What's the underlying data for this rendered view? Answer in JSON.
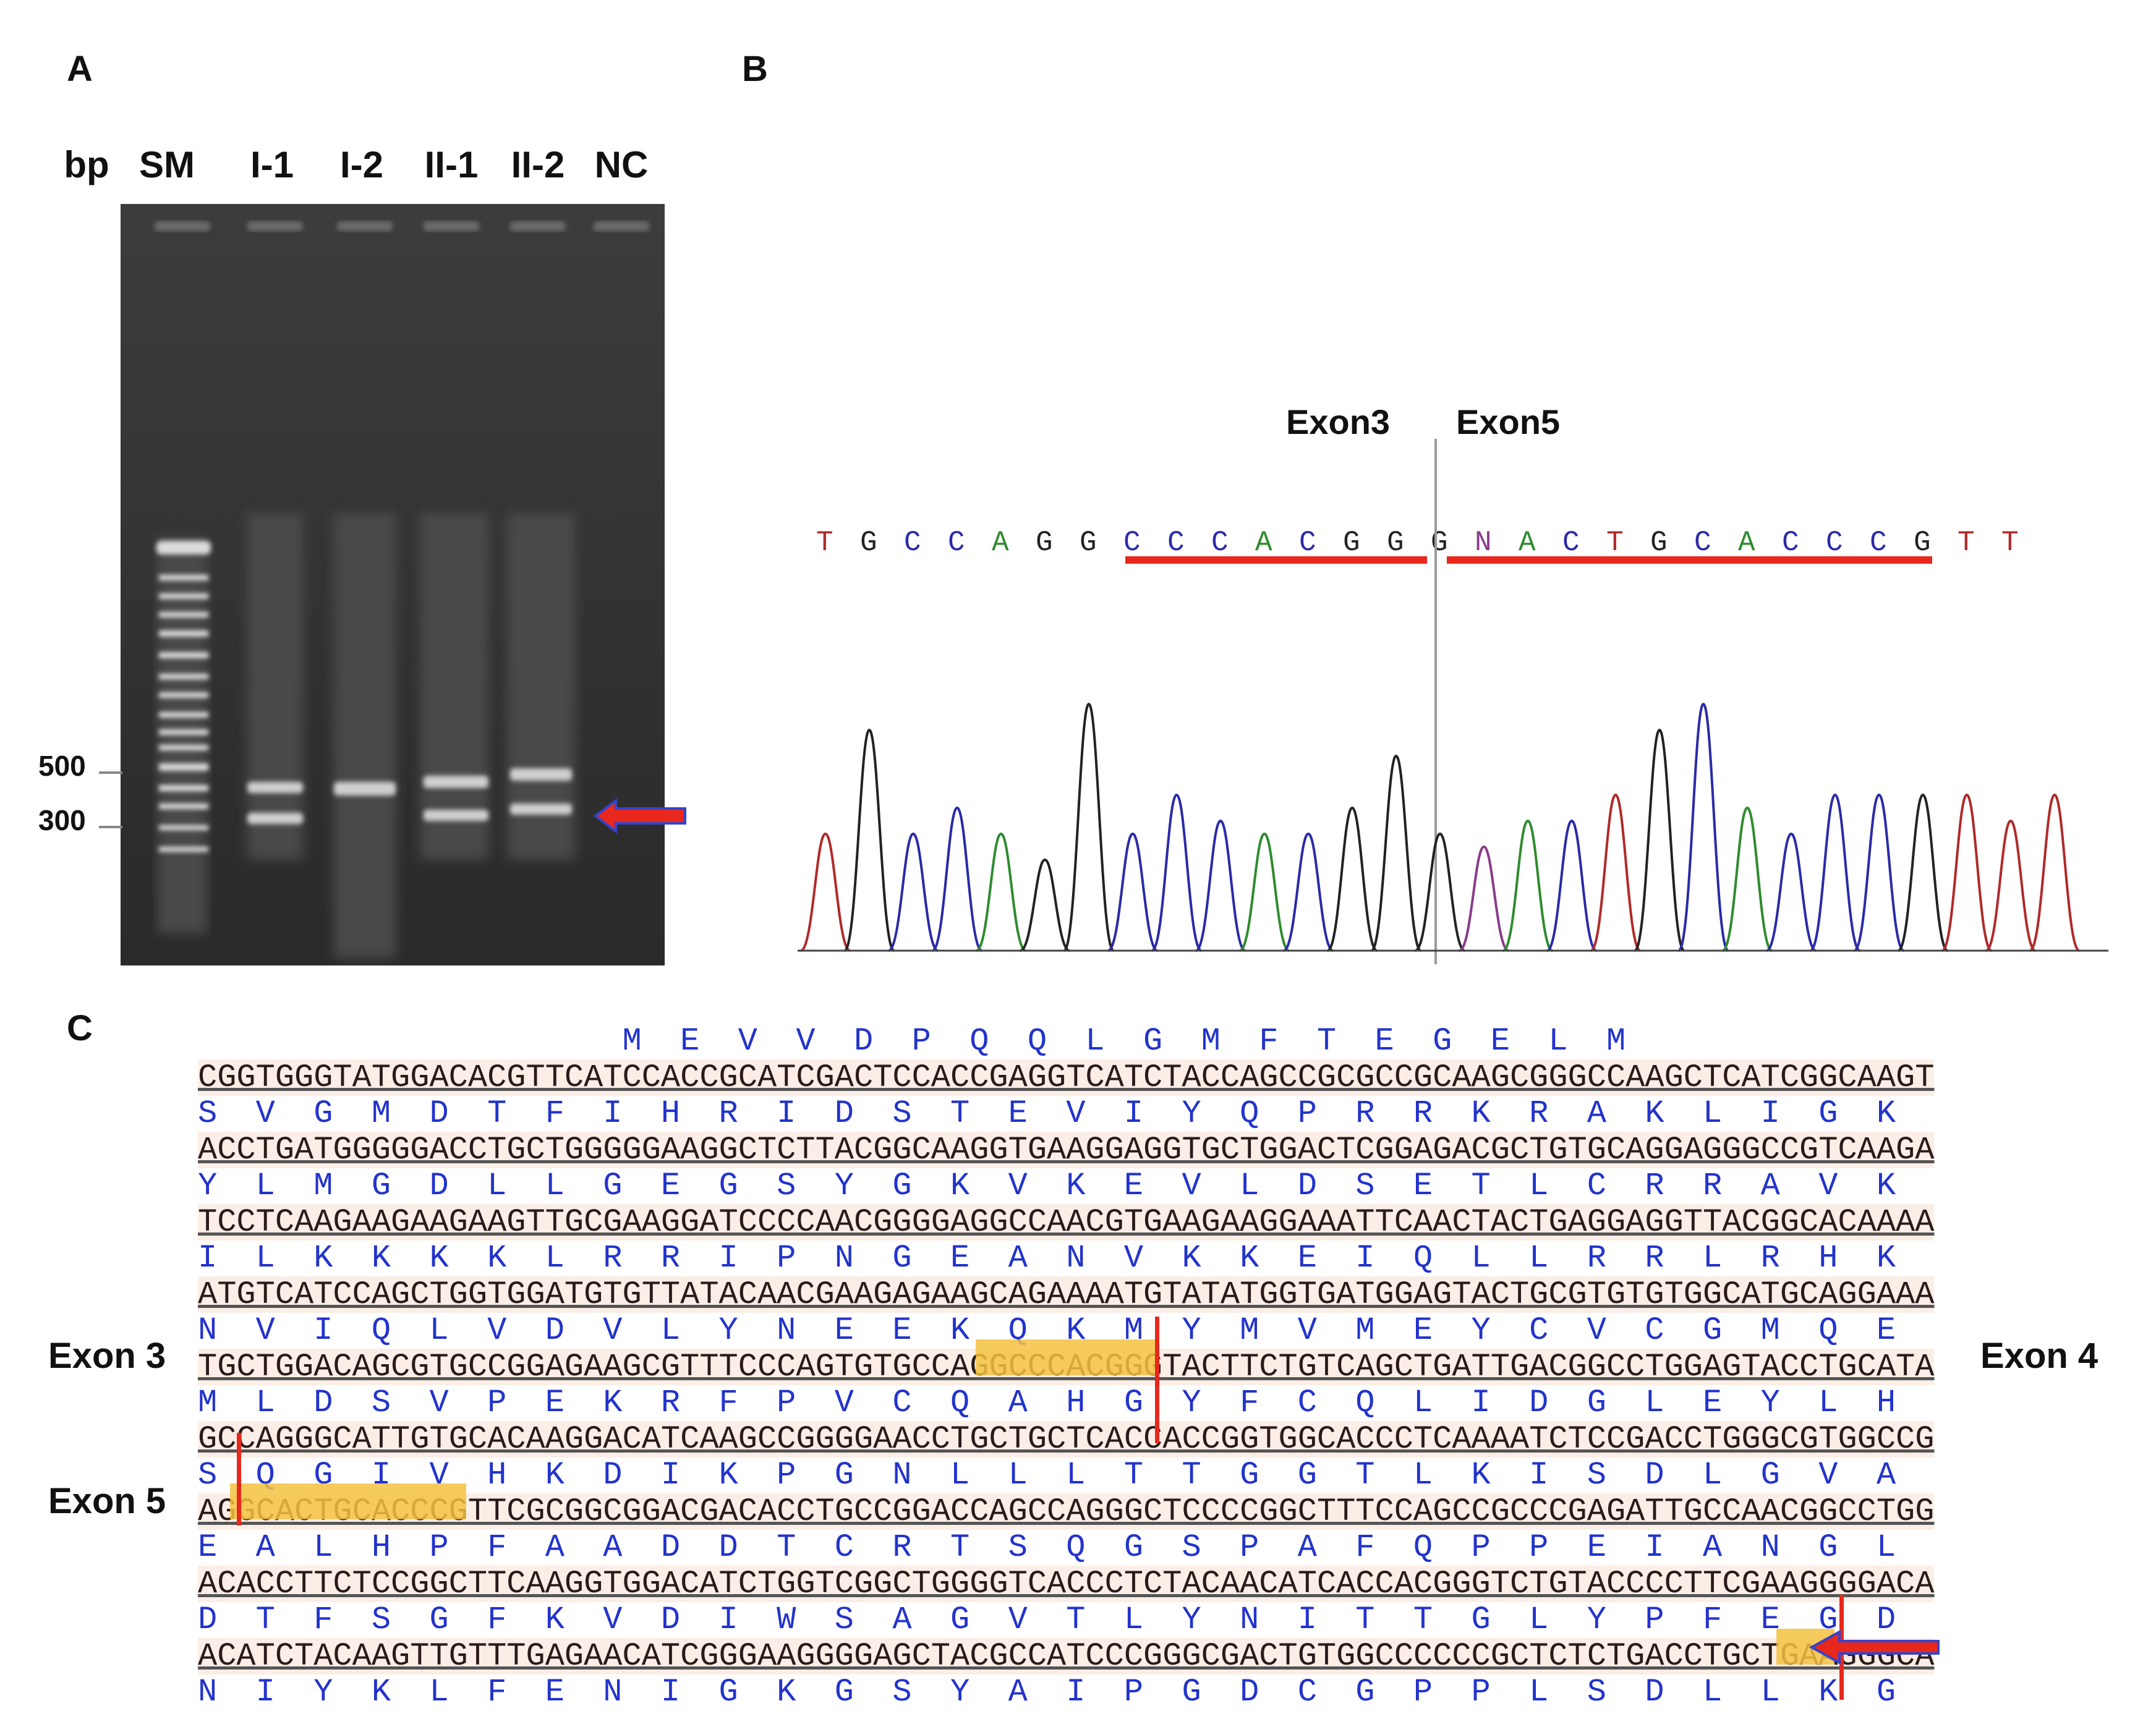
{
  "panels": {
    "a": "A",
    "b": "B",
    "c": "C"
  },
  "gel": {
    "bp_label": "bp",
    "lanes": [
      "SM",
      "I-1",
      "I-2",
      "II-1",
      "II-2",
      "NC"
    ],
    "markers": [
      "500",
      "300"
    ],
    "arrow_color": "#e8281c"
  },
  "chromatogram": {
    "exon_left": "Exon3",
    "exon_right": "Exon5",
    "bases": [
      "T",
      "G",
      "C",
      "C",
      "A",
      "G",
      "G",
      "C",
      "C",
      "C",
      "A",
      "C",
      "G",
      "G",
      "G",
      "N",
      "A",
      "C",
      "T",
      "G",
      "C",
      "A",
      "C",
      "C",
      "C",
      "G",
      "T",
      "T"
    ],
    "base_colors": {
      "A": "#2e8b2e",
      "C": "#2a2aa8",
      "G": "#222222",
      "T": "#b02a2a",
      "N": "#8a3a8a"
    }
  },
  "sequence": {
    "exon_3": "Exon 3",
    "exon_4": "Exon 4",
    "exon_5": "Exon 5",
    "lines": [
      {
        "t": "aa",
        "s": "                      M  E  V  V  D  P  Q  Q  L  G  M  F  T  E  G  E  L  M"
      },
      {
        "t": "dna",
        "s": "CGGTGGGTATGGACACGTTCATCCACCGCATCGACTCCACCGAGGTCATCTACCAGCCGCGCCGCAAGCGGGCCAAGCTCATCGGCAAGT"
      },
      {
        "t": "aa",
        "s": "S  V  G  M  D  T  F  I  H  R  I  D  S  T  E  V  I  Y  Q  P  R  R  K  R  A  K  L  I  G  K"
      },
      {
        "t": "dna",
        "s": "ACCTGATGGGGGACCTGCTGGGGGAAGGCTCTTACGGCAAGGTGAAGGAGGTGCTGGACTCGGAGACGCTGTGCAGGAGGGCCGTCAAGA"
      },
      {
        "t": "aa",
        "s": "Y  L  M  G  D  L  L  G  E  G  S  Y  G  K  V  K  E  V  L  D  S  E  T  L  C  R  R  A  V  K"
      },
      {
        "t": "dna",
        "s": "TCCTCAAGAAGAAGAAGTTGCGAAGGATCCCCAACGGGGAGGCCAACGTGAAGAAGGAAATTCAACTACTGAGGAGGTTACGGCACAAAA"
      },
      {
        "t": "aa",
        "s": "I  L  K  K  K  K  L  R  R  I  P  N  G  E  A  N  V  K  K  E  I  Q  L  L  R  R  L  R  H  K"
      },
      {
        "t": "dna",
        "s": "ATGTCATCCAGCTGGTGGATGTGTTATACAACGAAGAGAAGCAGAAAATGTATATGGTGATGGAGTACTGCGTGTGTGGCATGCAGGAAA"
      },
      {
        "t": "aa",
        "s": "N  V  I  Q  L  V  D  V  L  Y  N  E  E  K  Q  K  M  Y  M  V  M  E  Y  C  V  C  G  M  Q  E"
      },
      {
        "t": "dna",
        "s": "TGCTGGACAGCGTGCCGGAGAAGCGTTTCCCAGTGTGCCAGGCCCACGGGTACTTCTGTCAGCTGATTGACGGCCTGGAGTACCTGCATA"
      },
      {
        "t": "aa",
        "s": "M  L  D  S  V  P  E  K  R  F  P  V  C  Q  A  H  G  Y  F  C  Q  L  I  D  G  L  E  Y  L  H"
      },
      {
        "t": "dna",
        "s": "GCCAGGGCATTGTGCACAAGGACATCAAGCCGGGGAACCTGCTGCTCACCACCGGTGGCACCCTCAAAATCTCCGACCTGGGCGTGGCCG"
      },
      {
        "t": "aa",
        "s": "S  Q  G  I  V  H  K  D  I  K  P  G  N  L  L  L  T  T  G  G  T  L  K  I  S  D  L  G  V  A"
      },
      {
        "t": "dna",
        "s": "AGGCACTGCACCCGTTCGCGGCGGACGACACCTGCCGGACCAGCCAGGGCTCCCCGGCTTTCCAGCCGCCCGAGATTGCCAACGGCCTGG"
      },
      {
        "t": "aa",
        "s": "E  A  L  H  P  F  A  A  D  D  T  C  R  T  S  Q  G  S  P  A  F  Q  P  P  E  I  A  N  G  L"
      },
      {
        "t": "dna",
        "s": "ACACCTTCTCCGGCTTCAAGGTGGACATCTGGTCGGCTGGGGTCACCCTCTACAACATCACCACGGGTCTGTACCCCTTCGAAGGGGACA"
      },
      {
        "t": "aa",
        "s": "D  T  F  S  G  F  K  V  D  I  W  S  A  G  V  T  L  Y  N  I  T  T  G  L  Y  P  F  E  G  D"
      },
      {
        "t": "dna",
        "s": "ACATCTACAAGTTGTTTGAGAACATCGGGAAGGGGAGCTACGCCATCCCGGGCGACTGTGGCCCCCCGCTCTCTGACCTGCTGAAGGGCA"
      },
      {
        "t": "aa",
        "s": "N  I  Y  K  L  F  E  N  I  G  K  G  S  Y  A  I  P  G  D  C  G  P  P  L  S  D  L  L  K  G"
      }
    ]
  }
}
